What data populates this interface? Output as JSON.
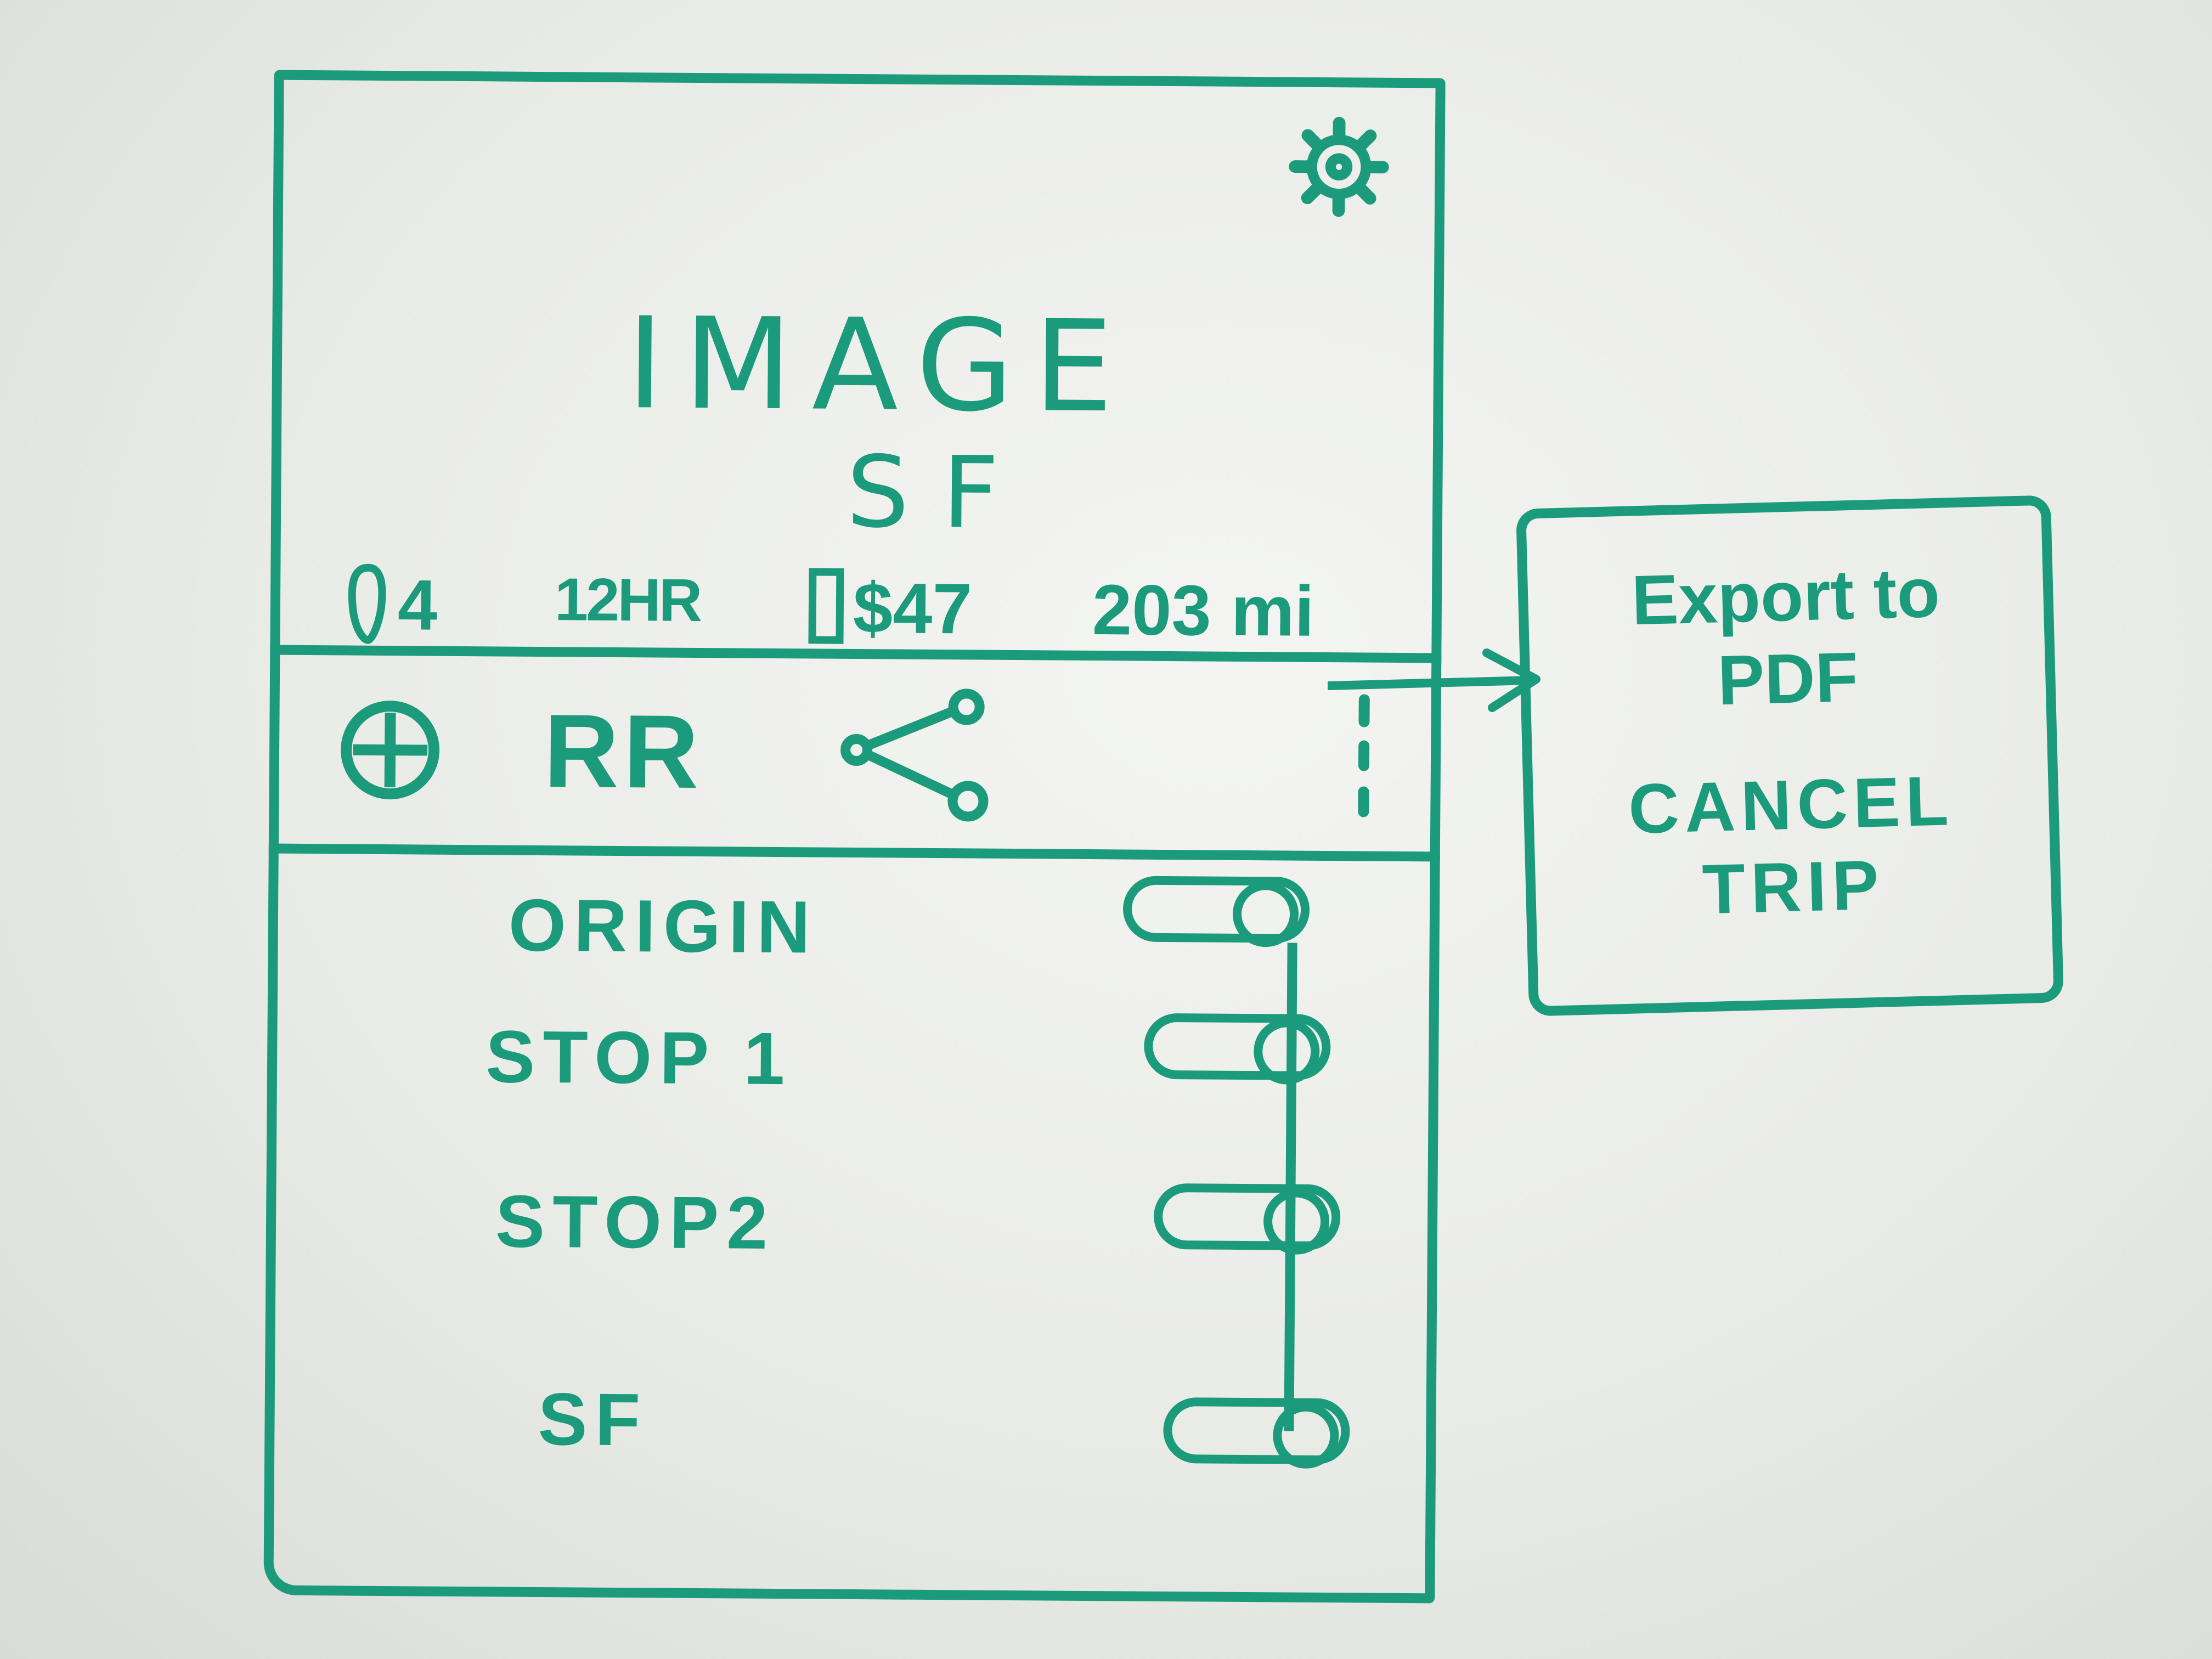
{
  "app": {
    "title": "IMAGE",
    "subtitle": "SF",
    "icons": {
      "settings": "gear-icon"
    }
  },
  "stats": {
    "stops_count": "4",
    "duration": "12HR",
    "cost": "$47",
    "distance": "203 mi"
  },
  "toolbar": {
    "route_label": "RR",
    "icons": {
      "add": "plus-circle-icon",
      "share": "share-icon",
      "more": "more-vertical-icon"
    }
  },
  "stops": [
    {
      "label": "ORIGIN",
      "enabled": true
    },
    {
      "label": "STOP 1",
      "enabled": true
    },
    {
      "label": "STOP2",
      "enabled": true
    },
    {
      "label": "SF",
      "enabled": true
    }
  ],
  "menu": {
    "export_label": "Export to\nPDF",
    "cancel_label": "CANCEL\nTRIP"
  },
  "colors": {
    "ink": "#1b9a7c",
    "board": "#eceeea"
  }
}
